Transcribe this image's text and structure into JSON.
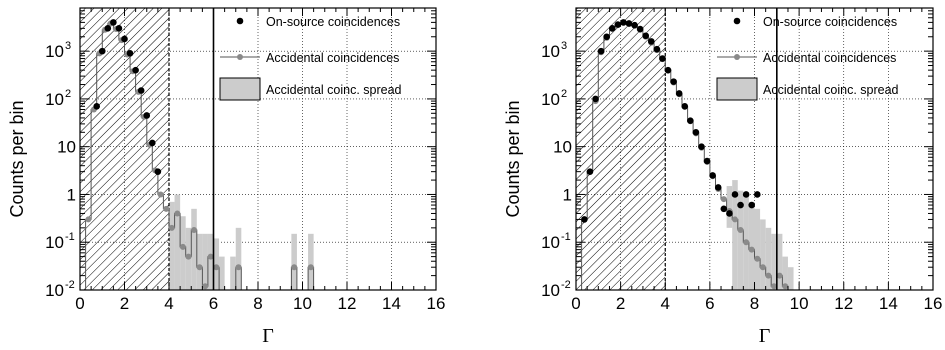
{
  "colors": {
    "on_source": "#000000",
    "accidental": "#8a8a8a",
    "spread": "#cccccc",
    "hatch": "#000000",
    "grid": "#000000"
  },
  "chart_data": [
    {
      "type": "scatter",
      "xlabel": "Γ",
      "ylabel": "Counts per bin",
      "xlim": [
        0,
        16
      ],
      "ylim": [
        0.01,
        8000
      ],
      "yscale": "log",
      "grid": true,
      "legend_position": "top-right",
      "x_ticks": [
        "0",
        "2",
        "4",
        "6",
        "8",
        "10",
        "12",
        "14",
        "16"
      ],
      "y_ticks": [
        {
          "value": 0.01,
          "base": "10",
          "exp": "-2"
        },
        {
          "value": 0.1,
          "base": "10",
          "exp": "-1"
        },
        {
          "value": 1,
          "base": "1",
          "exp": ""
        },
        {
          "value": 10,
          "base": "10",
          "exp": ""
        },
        {
          "value": 100,
          "base": "10",
          "exp": "2"
        },
        {
          "value": 1000,
          "base": "10",
          "exp": "3"
        }
      ],
      "hatched_region": [
        0,
        4
      ],
      "dashed_line_x": 4,
      "cut_line_x": 6,
      "legend": [
        "On-source coincidences",
        "Accidental coincidences",
        "Accidental coinc. spread"
      ],
      "series": [
        {
          "name": "On-source coincidences",
          "x": [
            0.75,
            1.0,
            1.25,
            1.5,
            1.75,
            2.0,
            2.25,
            2.5,
            2.75,
            3.0,
            3.25,
            3.5
          ],
          "values": [
            70,
            1000,
            3000,
            4000,
            3000,
            1800,
            900,
            400,
            150,
            45,
            12,
            3
          ]
        },
        {
          "name": "Accidental coincidences",
          "x": [
            0.125,
            0.375,
            0.625,
            0.875,
            1.125,
            1.375,
            1.625,
            1.875,
            2.125,
            2.375,
            2.625,
            2.875,
            3.125,
            3.375,
            3.625,
            3.875,
            4.125,
            4.375,
            4.625,
            4.875,
            5.125,
            5.375,
            5.625,
            5.875,
            6.125,
            6.375,
            6.625,
            6.875,
            7.125,
            7.375,
            7.625,
            7.875,
            8.125,
            8.375,
            8.625,
            8.875,
            9.125,
            9.375,
            9.625,
            9.875,
            10.125,
            10.375,
            10.625
          ],
          "values": [
            0.01,
            0.3,
            60,
            900,
            2800,
            3800,
            2900,
            1700,
            850,
            380,
            140,
            42,
            11,
            3.2,
            1.0,
            0.5,
            0.2,
            0.4,
            0.08,
            0.05,
            0.18,
            0.03,
            0.012,
            0.05,
            0.03,
            0.01,
            0.01,
            0.01,
            0.03,
            0.01,
            0.01,
            0.01,
            0.01,
            0.01,
            0.01,
            0.01,
            0.01,
            0.01,
            0.03,
            0.01,
            0.01,
            0.03,
            0.01
          ]
        },
        {
          "name": "Accidental coinc. spread",
          "x": [
            4.125,
            4.375,
            4.625,
            4.875,
            5.125,
            5.375,
            5.625,
            5.875,
            6.125,
            6.375,
            6.875,
            7.125,
            9.625,
            10.375
          ],
          "lower": [
            0.01,
            0.01,
            0.01,
            0.01,
            0.01,
            0.01,
            0.01,
            0.01,
            0.01,
            0.01,
            0.01,
            0.01,
            0.01,
            0.01
          ],
          "upper": [
            0.7,
            1.0,
            0.35,
            0.2,
            0.5,
            0.15,
            0.15,
            0.15,
            0.12,
            0.05,
            0.05,
            0.2,
            0.15,
            0.15
          ]
        }
      ]
    },
    {
      "type": "scatter",
      "xlabel": "Γ",
      "ylabel": "Counts per bin",
      "xlim": [
        0,
        16
      ],
      "ylim": [
        0.01,
        8000
      ],
      "yscale": "log",
      "grid": true,
      "legend_position": "top-right",
      "x_ticks": [
        "0",
        "2",
        "4",
        "6",
        "8",
        "10",
        "12",
        "14",
        "16"
      ],
      "y_ticks": [
        {
          "value": 0.01,
          "base": "10",
          "exp": "-2"
        },
        {
          "value": 0.1,
          "base": "10",
          "exp": "-1"
        },
        {
          "value": 1,
          "base": "1",
          "exp": ""
        },
        {
          "value": 10,
          "base": "10",
          "exp": ""
        },
        {
          "value": 100,
          "base": "10",
          "exp": "2"
        },
        {
          "value": 1000,
          "base": "10",
          "exp": "3"
        }
      ],
      "hatched_region": [
        0,
        4
      ],
      "dashed_line_x": 4,
      "cut_line_x": 9,
      "legend": [
        "On-source coincidences",
        "Accidental coincidences",
        "Accidental coinc. spread"
      ],
      "series": [
        {
          "name": "On-source coincidences",
          "x": [
            0.375,
            0.625,
            0.875,
            1.125,
            1.375,
            1.625,
            1.875,
            2.125,
            2.375,
            2.625,
            2.875,
            3.125,
            3.375,
            3.625,
            3.875,
            4.125,
            4.375,
            4.625,
            4.875,
            5.125,
            5.375,
            5.625,
            5.875,
            6.125,
            6.375,
            6.625,
            6.875,
            7.125,
            7.375,
            7.625,
            7.875,
            8.125
          ],
          "values": [
            0.3,
            3,
            100,
            1000,
            2000,
            3000,
            3600,
            4000,
            3800,
            3500,
            2900,
            2100,
            1600,
            1100,
            700,
            400,
            230,
            130,
            70,
            35,
            20,
            10,
            5,
            2.5,
            1.4,
            0.5,
            0.4,
            1.0,
            0.6,
            1.0,
            0.6,
            1.0
          ]
        },
        {
          "name": "Accidental coincidences",
          "x": [
            0.125,
            0.375,
            0.625,
            0.875,
            1.125,
            1.375,
            1.625,
            1.875,
            2.125,
            2.375,
            2.625,
            2.875,
            3.125,
            3.375,
            3.625,
            3.875,
            4.125,
            4.375,
            4.625,
            4.875,
            5.125,
            5.375,
            5.625,
            5.875,
            6.125,
            6.375,
            6.625,
            6.875,
            7.125,
            7.375,
            7.625,
            7.875,
            8.125,
            8.375,
            8.625,
            8.875,
            9.125,
            9.375,
            9.625,
            9.875,
            10.125
          ],
          "values": [
            0.01,
            0.3,
            3,
            90,
            950,
            1900,
            2900,
            3500,
            3900,
            3700,
            3400,
            2800,
            2000,
            1500,
            1050,
            680,
            390,
            220,
            125,
            68,
            34,
            19,
            9.5,
            4.8,
            2.4,
            1.3,
            0.8,
            0.45,
            0.3,
            0.18,
            0.1,
            0.07,
            0.045,
            0.03,
            0.02,
            0.012,
            0.02,
            0.012,
            0.01,
            0.01,
            0.01
          ]
        },
        {
          "name": "Accidental coinc. spread",
          "x": [
            6.875,
            7.125,
            7.375,
            7.625,
            7.875,
            8.125,
            8.375,
            8.625,
            8.875,
            9.125,
            9.375,
            9.625
          ],
          "lower": [
            0.2,
            0.01,
            0.01,
            0.01,
            0.01,
            0.01,
            0.01,
            0.01,
            0.01,
            0.01,
            0.01,
            0.01
          ],
          "upper": [
            1.5,
            2.0,
            1.2,
            1.0,
            0.7,
            0.5,
            0.3,
            0.2,
            0.15,
            0.15,
            0.05,
            0.03
          ]
        }
      ]
    }
  ]
}
